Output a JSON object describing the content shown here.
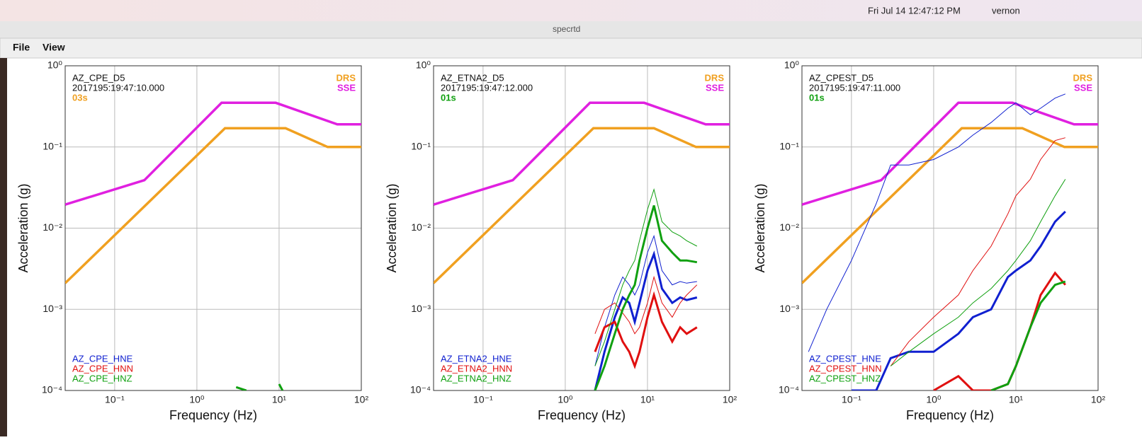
{
  "menubar": {
    "clock": "Fri Jul 14  12:47:12 PM",
    "user": "vernon"
  },
  "window": {
    "title": "specrtd",
    "menus": [
      "File",
      "View"
    ]
  },
  "chart_data": [
    {
      "type": "line",
      "station": "AZ_CPE_D5",
      "time": "2017195:19:47:10.000",
      "window": "03s",
      "window_color": "#f0a020",
      "xlabel": "Frequency (Hz)",
      "ylabel": "Acceleration (g)",
      "log": true,
      "grid": true,
      "xlim": [
        0.025,
        100
      ],
      "ylim": [
        0.0001,
        1
      ],
      "xticks": [
        {
          "value": 0.1,
          "label": "10⁻¹"
        },
        {
          "value": 1,
          "label": "10⁰"
        },
        {
          "value": 10,
          "label": "10¹"
        },
        {
          "value": 100,
          "label": "10²"
        }
      ],
      "yticks": [
        {
          "value": 0.0001,
          "label": "10⁻⁴"
        },
        {
          "value": 0.001,
          "label": "10⁻³"
        },
        {
          "value": 0.01,
          "label": "10⁻²"
        },
        {
          "value": 0.1,
          "label": "10⁻¹"
        },
        {
          "value": 1,
          "label": "10⁰"
        }
      ],
      "reference": [
        {
          "name": "DRS",
          "color": "#f0a020",
          "x": [
            0.025,
            2.2,
            12,
            39,
            100
          ],
          "values": [
            0.0021,
            0.17,
            0.17,
            0.1,
            0.1
          ]
        },
        {
          "name": "SSE",
          "color": "#e020e0",
          "x": [
            0.025,
            0.23,
            2.0,
            9.1,
            51,
            100
          ],
          "values": [
            0.0195,
            0.039,
            0.35,
            0.35,
            0.19,
            0.19
          ]
        }
      ],
      "series": [
        {
          "name": "AZ_CPE_HNE",
          "color": "#1020d0",
          "x": [],
          "values": []
        },
        {
          "name": "AZ_CPE_HNN",
          "color": "#e01010",
          "x": [],
          "values": []
        },
        {
          "name": "AZ_CPE_HNZ",
          "color": "#10a010",
          "x": [
            3,
            4,
            5,
            10,
            11
          ],
          "values": [
            0.00011,
            0.0001,
            null,
            0.00012,
            0.0001
          ]
        }
      ]
    },
    {
      "type": "line",
      "station": "AZ_ETNA2_D5",
      "time": "2017195:19:47:12.000",
      "window": "01s",
      "window_color": "#10a010",
      "xlabel": "Frequency (Hz)",
      "ylabel": "Acceleration (g)",
      "log": true,
      "grid": true,
      "xlim": [
        0.025,
        100
      ],
      "ylim": [
        0.0001,
        1
      ],
      "xticks": [
        {
          "value": 0.1,
          "label": "10⁻¹"
        },
        {
          "value": 1,
          "label": "10⁰"
        },
        {
          "value": 10,
          "label": "10¹"
        },
        {
          "value": 100,
          "label": "10²"
        }
      ],
      "yticks": [
        {
          "value": 0.0001,
          "label": "10⁻⁴"
        },
        {
          "value": 0.001,
          "label": "10⁻³"
        },
        {
          "value": 0.01,
          "label": "10⁻²"
        },
        {
          "value": 0.1,
          "label": "10⁻¹"
        },
        {
          "value": 1,
          "label": "10⁰"
        }
      ],
      "reference": [
        {
          "name": "DRS",
          "color": "#f0a020",
          "x": [
            0.025,
            2.2,
            12,
            39,
            100
          ],
          "values": [
            0.0021,
            0.17,
            0.17,
            0.1,
            0.1
          ]
        },
        {
          "name": "SSE",
          "color": "#e020e0",
          "x": [
            0.025,
            0.23,
            2.0,
            9.1,
            51,
            100
          ],
          "values": [
            0.0195,
            0.039,
            0.35,
            0.35,
            0.19,
            0.19
          ]
        }
      ],
      "series": [
        {
          "name": "AZ_ETNA2_HNE",
          "color": "#1020d0",
          "x": [
            2.3,
            3,
            4,
            5,
            6,
            7,
            8,
            10,
            12,
            15,
            20,
            25,
            30,
            40
          ],
          "values": [
            0.0001,
            0.0003,
            0.0008,
            0.0014,
            0.0012,
            0.0007,
            0.0012,
            0.003,
            0.0048,
            0.0018,
            0.0012,
            0.0014,
            0.0013,
            0.0014
          ],
          "upper": [
            0.0002,
            0.0006,
            0.0015,
            0.0025,
            0.002,
            0.0015,
            0.002,
            0.005,
            0.008,
            0.003,
            0.002,
            0.0022,
            0.0021,
            0.0022
          ]
        },
        {
          "name": "AZ_ETNA2_HNN",
          "color": "#e01010",
          "x": [
            2.3,
            3,
            4,
            5,
            6,
            7,
            8,
            10,
            12,
            15,
            20,
            25,
            30,
            40
          ],
          "values": [
            0.0003,
            0.0006,
            0.0007,
            0.0004,
            0.0003,
            0.0002,
            0.0003,
            0.0008,
            0.0015,
            0.0007,
            0.0004,
            0.0006,
            0.0005,
            0.0006
          ],
          "upper": [
            0.0005,
            0.001,
            0.0012,
            0.0009,
            0.0007,
            0.0005,
            0.0006,
            0.0012,
            0.0025,
            0.0012,
            0.0008,
            0.0012,
            0.0015,
            0.002
          ]
        },
        {
          "name": "AZ_ETNA2_HNZ",
          "color": "#10a010",
          "x": [
            2.3,
            3,
            4,
            5,
            6,
            7,
            8,
            10,
            12,
            15,
            20,
            25,
            30,
            40
          ],
          "values": [
            0.0001,
            0.0002,
            0.0005,
            0.001,
            0.0015,
            0.002,
            0.004,
            0.01,
            0.019,
            0.007,
            0.005,
            0.004,
            0.004,
            0.0038
          ],
          "upper": [
            0.0002,
            0.0004,
            0.001,
            0.002,
            0.003,
            0.004,
            0.007,
            0.017,
            0.03,
            0.012,
            0.009,
            0.008,
            0.007,
            0.006
          ]
        }
      ]
    },
    {
      "type": "line",
      "station": "AZ_CPEST_D5",
      "time": "2017195:19:47:11.000",
      "window": "01s",
      "window_color": "#10a010",
      "xlabel": "Frequency (Hz)",
      "ylabel": "Acceleration (g)",
      "log": true,
      "grid": true,
      "xlim": [
        0.025,
        100
      ],
      "ylim": [
        0.0001,
        1
      ],
      "xticks": [
        {
          "value": 0.1,
          "label": "10⁻¹"
        },
        {
          "value": 1,
          "label": "10⁰"
        },
        {
          "value": 10,
          "label": "10¹"
        },
        {
          "value": 100,
          "label": "10²"
        }
      ],
      "yticks": [
        {
          "value": 0.0001,
          "label": "10⁻⁴"
        },
        {
          "value": 0.001,
          "label": "10⁻³"
        },
        {
          "value": 0.01,
          "label": "10⁻²"
        },
        {
          "value": 0.1,
          "label": "10⁻¹"
        },
        {
          "value": 1,
          "label": "10⁰"
        }
      ],
      "reference": [
        {
          "name": "DRS",
          "color": "#f0a020",
          "x": [
            0.025,
            2.2,
            12,
            39,
            100
          ],
          "values": [
            0.0021,
            0.17,
            0.17,
            0.1,
            0.1
          ]
        },
        {
          "name": "SSE",
          "color": "#e020e0",
          "x": [
            0.025,
            0.23,
            2.0,
            9.1,
            51,
            100
          ],
          "values": [
            0.0195,
            0.039,
            0.35,
            0.35,
            0.19,
            0.19
          ]
        }
      ],
      "series": [
        {
          "name": "AZ_CPEST_HNE",
          "color": "#1020d0",
          "x": [
            0.03,
            0.05,
            0.1,
            0.2,
            0.3,
            0.5,
            1,
            2,
            3,
            5,
            8,
            10,
            15,
            20,
            30,
            40
          ],
          "values": [
            null,
            null,
            0.0001,
            0.0001,
            0.00025,
            0.0003,
            0.0003,
            0.0005,
            0.0008,
            0.001,
            0.0025,
            0.003,
            0.004,
            0.006,
            0.012,
            0.016
          ],
          "upper": [
            0.0003,
            0.001,
            0.004,
            0.02,
            0.06,
            0.06,
            0.07,
            0.1,
            0.14,
            0.2,
            0.3,
            0.35,
            0.25,
            0.3,
            0.4,
            0.45
          ]
        },
        {
          "name": "AZ_CPEST_HNN",
          "color": "#e01010",
          "x": [
            0.03,
            0.05,
            0.1,
            0.2,
            0.3,
            0.5,
            1,
            2,
            3,
            5,
            8,
            10,
            15,
            20,
            30,
            40
          ],
          "values": [
            null,
            null,
            null,
            null,
            null,
            null,
            0.0001,
            0.00015,
            0.0001,
            0.0001,
            0.00012,
            0.0002,
            0.0006,
            0.0015,
            0.0028,
            0.002
          ],
          "upper": [
            null,
            null,
            null,
            null,
            0.0002,
            0.0004,
            0.0008,
            0.0015,
            0.003,
            0.006,
            0.015,
            0.025,
            0.04,
            0.07,
            0.12,
            0.13
          ]
        },
        {
          "name": "AZ_CPEST_HNZ",
          "color": "#10a010",
          "x": [
            0.03,
            0.05,
            0.1,
            0.2,
            0.3,
            0.5,
            1,
            2,
            3,
            5,
            8,
            10,
            15,
            20,
            30,
            40
          ],
          "values": [
            null,
            null,
            null,
            null,
            null,
            null,
            null,
            null,
            null,
            0.0001,
            0.00012,
            0.0002,
            0.0006,
            0.0012,
            0.002,
            0.0022
          ],
          "upper": [
            null,
            null,
            null,
            null,
            0.0002,
            0.0003,
            0.0005,
            0.0008,
            0.0012,
            0.0018,
            0.003,
            0.004,
            0.007,
            0.012,
            0.025,
            0.04
          ]
        }
      ]
    }
  ]
}
